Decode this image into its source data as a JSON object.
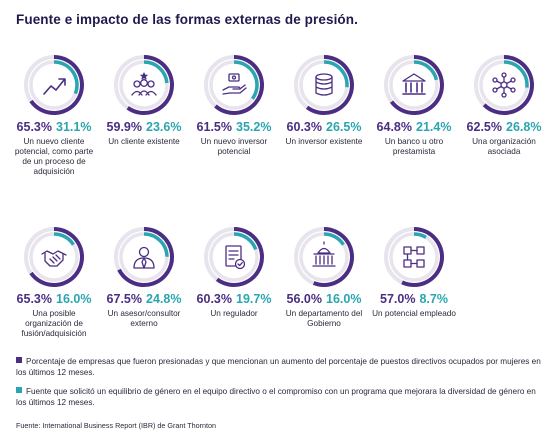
{
  "title": "Fuente e impacto de las formas externas de presión.",
  "colors": {
    "purple": "#4b2e83",
    "teal": "#2aa6b0",
    "track": "#e7e4ee"
  },
  "chart_data": {
    "type": "pie",
    "series_keys": [
      "purple",
      "teal"
    ],
    "items": [
      {
        "icon": "trend-up-icon",
        "purple": 65.3,
        "teal": 31.1,
        "purple_label": "65.3%",
        "teal_label": "31.1%",
        "label": "Un nuevo cliente potencial, como parte de un proceso de adquisición"
      },
      {
        "icon": "customers-star-icon",
        "purple": 59.9,
        "teal": 23.6,
        "purple_label": "59.9%",
        "teal_label": "23.6%",
        "label": "Un cliente existente"
      },
      {
        "icon": "hand-money-icon",
        "purple": 61.5,
        "teal": 35.2,
        "purple_label": "61.5%",
        "teal_label": "35.2%",
        "label": "Un nuevo inversor potencial"
      },
      {
        "icon": "coin-stack-icon",
        "purple": 60.3,
        "teal": 26.5,
        "purple_label": "60.3%",
        "teal_label": "26.5%",
        "label": "Un inversor existente"
      },
      {
        "icon": "bank-icon",
        "purple": 64.8,
        "teal": 21.4,
        "purple_label": "64.8%",
        "teal_label": "21.4%",
        "label": "Un banco u otro prestamista"
      },
      {
        "icon": "network-icon",
        "purple": 62.5,
        "teal": 26.8,
        "purple_label": "62.5%",
        "teal_label": "26.8%",
        "label": "Una organización asociada"
      },
      {
        "icon": "handshake-icon",
        "purple": 65.3,
        "teal": 16.0,
        "purple_label": "65.3%",
        "teal_label": "16.0%",
        "label": "Una posible organización de fusión/adquisición"
      },
      {
        "icon": "advisor-icon",
        "purple": 67.5,
        "teal": 24.8,
        "purple_label": "67.5%",
        "teal_label": "24.8%",
        "label": "Un asesor/consultor externo"
      },
      {
        "icon": "document-check-icon",
        "purple": 60.3,
        "teal": 19.7,
        "purple_label": "60.3%",
        "teal_label": "19.7%",
        "label": "Un regulador"
      },
      {
        "icon": "government-building-icon",
        "purple": 56.0,
        "teal": 16.0,
        "purple_label": "56.0%",
        "teal_label": "16.0%",
        "label": "Un departamento del Gobierno"
      },
      {
        "icon": "flowchart-icon",
        "purple": 57.0,
        "teal": 8.7,
        "purple_label": "57.0%",
        "teal_label": "8.7%",
        "label": "Un potencial empleado"
      }
    ]
  },
  "legend": [
    {
      "color": "purple",
      "text": "Porcentaje de empresas que fueron presionadas y que mencionan un aumento del porcentaje de puestos directivos ocupados por mujeres en los últimos 12 meses."
    },
    {
      "color": "teal",
      "text": "Fuente que solicitó un equilibrio de género en el equipo directivo o el compromiso con un programa que mejorara la diversidad de género en los últimos 12 meses."
    }
  ],
  "source": "Fuente: International Business Report (IBR) de Grant Thornton"
}
